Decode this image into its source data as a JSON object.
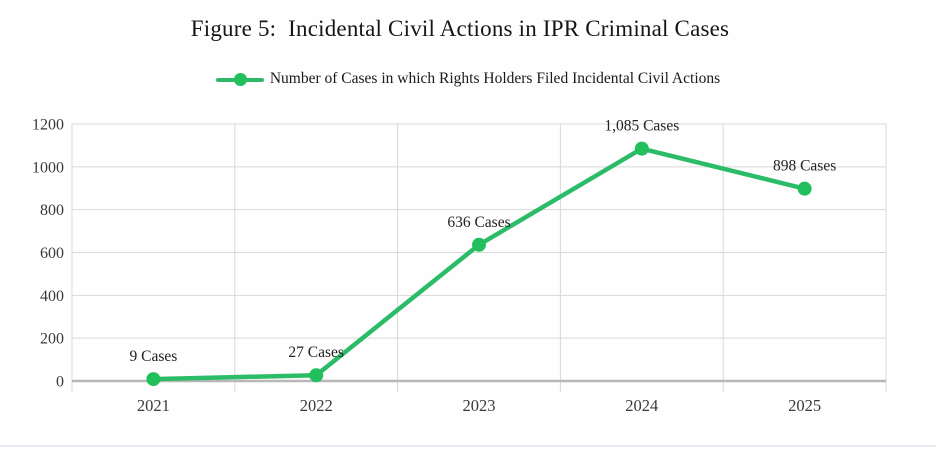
{
  "figure": {
    "title": "Figure 5:  Incidental Civil Actions in IPR Criminal Cases",
    "legend_label": "Number of Cases in which Rights Holders Filed Incidental Civil Actions"
  },
  "chart_data": {
    "type": "line",
    "title": "Figure 5:  Incidental Civil Actions in IPR Criminal Cases",
    "categories": [
      "2021",
      "2022",
      "2023",
      "2024",
      "2025"
    ],
    "series": [
      {
        "name": "Number of Cases in which Rights Holders Filed Incidental Civil Actions",
        "values": [
          9,
          27,
          636,
          1085,
          898
        ],
        "point_labels": [
          "9 Cases",
          "27 Cases",
          "636 Cases",
          "1,085 Cases",
          "898 Cases"
        ]
      }
    ],
    "xlabel": "",
    "ylabel": "",
    "ylim": [
      0,
      1200
    ],
    "ytick_step": 200,
    "grid": true,
    "legend_position": "top",
    "colors": {
      "line": "#2cbc68",
      "marker": "#22c05c",
      "gridline": "#d9d9d9",
      "plot_border": "#d9d9d9",
      "axis_line": "#b8b8b8",
      "tick_text": "#3a3a3a",
      "data_label_text": "#222222"
    }
  }
}
